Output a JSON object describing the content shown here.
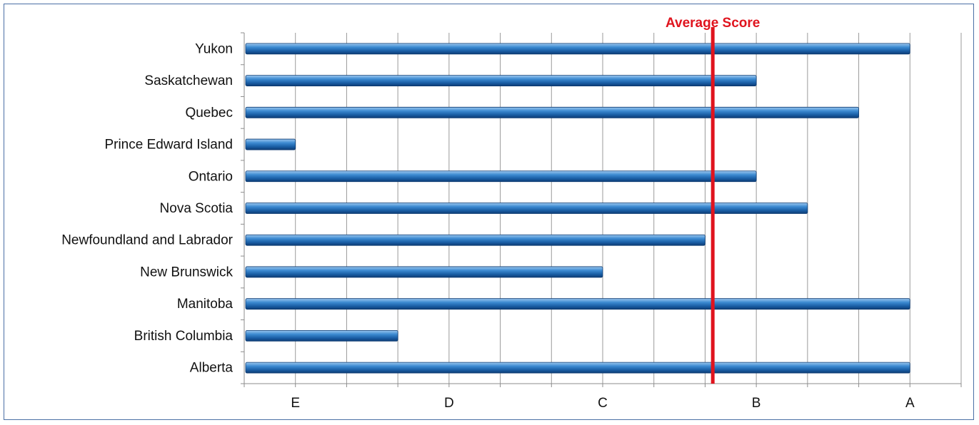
{
  "chart_data": {
    "type": "bar",
    "orientation": "horizontal",
    "categories": [
      "Yukon",
      "Saskatchewan",
      "Quebec",
      "Prince Edward Island",
      "Ontario",
      "Nova Scotia",
      "Newfoundland and Labrador",
      "New Brunswick",
      "Manitoba",
      "British Columbia",
      "Alberta"
    ],
    "values": [
      13.0,
      10.0,
      12.0,
      1.0,
      10.0,
      11.0,
      9.0,
      7.0,
      13.0,
      3.0,
      13.0
    ],
    "x_ticks": [
      {
        "value": 1,
        "label": "E"
      },
      {
        "value": 4,
        "label": "D"
      },
      {
        "value": 7,
        "label": "C"
      },
      {
        "value": 10,
        "label": "B"
      },
      {
        "value": 13,
        "label": "A"
      }
    ],
    "xlim": [
      0,
      14
    ],
    "grid": true,
    "reference_line": {
      "value": 9.15,
      "label": "Average Score",
      "color": "#e0141e"
    },
    "bar_color": "#1f6fb7"
  }
}
